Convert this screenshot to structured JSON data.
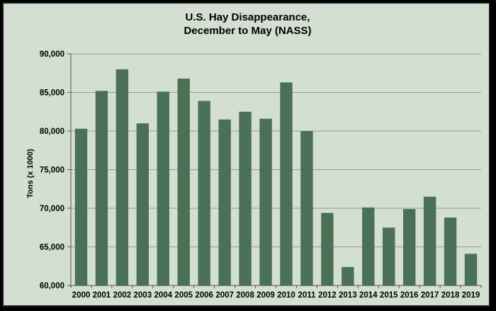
{
  "chart_data": {
    "type": "bar",
    "title_line1": "U.S. Hay Disappearance,",
    "title_line2": "December to May  (NASS)",
    "xlabel": "",
    "ylabel": "Tons (x 1000)",
    "ylim": [
      60000,
      90000
    ],
    "yticks": [
      "60,000",
      "65,000",
      "70,000",
      "75,000",
      "80,000",
      "85,000",
      "90,000"
    ],
    "ytick_values": [
      60000,
      65000,
      70000,
      75000,
      80000,
      85000,
      90000
    ],
    "grid": true,
    "bar_color": "#4a7055",
    "categories": [
      "2000",
      "2001",
      "2002",
      "2003",
      "2004",
      "2005",
      "2006",
      "2007",
      "2008",
      "2009",
      "2010",
      "2011",
      "2012",
      "2013",
      "2014",
      "2015",
      "2016",
      "2017",
      "2018",
      "2019"
    ],
    "values": [
      80300,
      85200,
      88000,
      81000,
      85100,
      86800,
      83900,
      81500,
      82500,
      81600,
      86300,
      80000,
      69400,
      62400,
      70100,
      67500,
      69900,
      71500,
      68800,
      64100
    ]
  }
}
